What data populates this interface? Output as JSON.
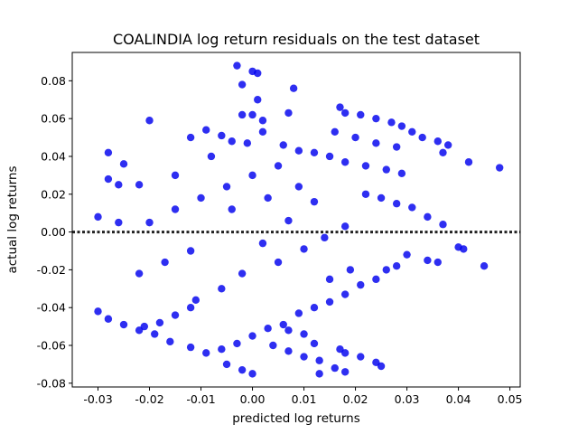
{
  "chart_data": {
    "type": "scatter",
    "title": "COALINDIA log return residuals on the test dataset",
    "xlabel": "predicted log returns",
    "ylabel": "actual log returns",
    "xlim": [
      -0.035,
      0.052
    ],
    "ylim": [
      -0.082,
      0.095
    ],
    "xticks": [
      "-0.03",
      "-0.02",
      "-0.01",
      "0.00",
      "0.01",
      "0.02",
      "0.03",
      "0.04",
      "0.05"
    ],
    "yticks": [
      "-0.08",
      "-0.06",
      "-0.04",
      "-0.02",
      "0.00",
      "0.02",
      "0.04",
      "0.06",
      "0.08"
    ],
    "grid": false,
    "reference_line": {
      "y": 0.0,
      "style": "dotted",
      "color": "#222222"
    },
    "marker_color": "#0000ee",
    "series": [
      {
        "values": [
          [
            -0.003,
            0.088
          ],
          [
            0.0,
            0.085
          ],
          [
            0.001,
            0.084
          ],
          [
            0.008,
            0.076
          ],
          [
            -0.002,
            0.078
          ],
          [
            0.001,
            0.07
          ],
          [
            -0.002,
            0.062
          ],
          [
            0.0,
            0.062
          ],
          [
            0.007,
            0.063
          ],
          [
            0.002,
            0.059
          ],
          [
            -0.02,
            0.059
          ],
          [
            0.017,
            0.066
          ],
          [
            0.018,
            0.063
          ],
          [
            0.021,
            0.062
          ],
          [
            0.024,
            0.06
          ],
          [
            0.027,
            0.058
          ],
          [
            0.029,
            0.056
          ],
          [
            0.031,
            0.053
          ],
          [
            0.033,
            0.05
          ],
          [
            0.036,
            0.048
          ],
          [
            0.038,
            0.046
          ],
          [
            0.037,
            0.042
          ],
          [
            0.042,
            0.037
          ],
          [
            0.048,
            0.034
          ],
          [
            0.02,
            0.05
          ],
          [
            0.024,
            0.047
          ],
          [
            0.028,
            0.045
          ],
          [
            0.016,
            0.053
          ],
          [
            -0.028,
            0.042
          ],
          [
            -0.025,
            0.036
          ],
          [
            -0.028,
            0.028
          ],
          [
            -0.026,
            0.025
          ],
          [
            -0.03,
            0.008
          ],
          [
            -0.026,
            0.005
          ],
          [
            -0.012,
            0.05
          ],
          [
            -0.009,
            0.054
          ],
          [
            -0.006,
            0.051
          ],
          [
            -0.004,
            0.048
          ],
          [
            -0.001,
            0.047
          ],
          [
            0.002,
            0.053
          ],
          [
            0.006,
            0.046
          ],
          [
            0.009,
            0.043
          ],
          [
            0.012,
            0.042
          ],
          [
            0.015,
            0.04
          ],
          [
            0.018,
            0.037
          ],
          [
            0.022,
            0.035
          ],
          [
            0.026,
            0.033
          ],
          [
            0.029,
            0.031
          ],
          [
            0.022,
            0.02
          ],
          [
            0.025,
            0.018
          ],
          [
            0.028,
            0.015
          ],
          [
            0.031,
            0.013
          ],
          [
            0.034,
            0.008
          ],
          [
            0.037,
            0.004
          ],
          [
            0.04,
            -0.008
          ],
          [
            0.041,
            -0.009
          ],
          [
            0.045,
            -0.018
          ],
          [
            0.036,
            -0.016
          ],
          [
            0.034,
            -0.015
          ],
          [
            0.03,
            -0.012
          ],
          [
            0.028,
            -0.018
          ],
          [
            0.026,
            -0.02
          ],
          [
            0.024,
            -0.025
          ],
          [
            0.021,
            -0.028
          ],
          [
            0.018,
            -0.033
          ],
          [
            0.015,
            -0.037
          ],
          [
            0.012,
            -0.04
          ],
          [
            0.009,
            -0.043
          ],
          [
            0.006,
            -0.049
          ],
          [
            0.003,
            -0.051
          ],
          [
            0.0,
            -0.055
          ],
          [
            -0.003,
            -0.059
          ],
          [
            -0.006,
            -0.062
          ],
          [
            -0.009,
            -0.064
          ],
          [
            -0.012,
            -0.061
          ],
          [
            -0.016,
            -0.058
          ],
          [
            -0.019,
            -0.054
          ],
          [
            -0.022,
            -0.052
          ],
          [
            -0.025,
            -0.049
          ],
          [
            -0.028,
            -0.046
          ],
          [
            -0.03,
            -0.042
          ],
          [
            -0.021,
            -0.05
          ],
          [
            -0.018,
            -0.048
          ],
          [
            -0.015,
            -0.044
          ],
          [
            -0.012,
            -0.04
          ],
          [
            0.004,
            -0.06
          ],
          [
            0.007,
            -0.063
          ],
          [
            0.01,
            -0.066
          ],
          [
            0.013,
            -0.068
          ],
          [
            0.016,
            -0.072
          ],
          [
            0.018,
            -0.074
          ],
          [
            0.013,
            -0.075
          ],
          [
            0.0,
            -0.075
          ],
          [
            -0.002,
            -0.073
          ],
          [
            -0.005,
            -0.07
          ],
          [
            0.012,
            -0.059
          ],
          [
            0.018,
            -0.064
          ],
          [
            0.021,
            -0.066
          ],
          [
            0.024,
            -0.069
          ],
          [
            0.025,
            -0.071
          ],
          [
            0.007,
            -0.052
          ],
          [
            0.01,
            -0.054
          ],
          [
            0.017,
            -0.062
          ],
          [
            0.005,
            -0.016
          ],
          [
            0.01,
            -0.009
          ],
          [
            0.014,
            -0.003
          ],
          [
            0.018,
            0.003
          ],
          [
            -0.005,
            0.024
          ],
          [
            -0.01,
            0.018
          ],
          [
            -0.015,
            0.012
          ],
          [
            -0.02,
            0.005
          ],
          [
            0.002,
            -0.006
          ],
          [
            -0.004,
            0.012
          ],
          [
            0.007,
            0.006
          ],
          [
            0.012,
            0.016
          ],
          [
            -0.012,
            -0.01
          ],
          [
            -0.017,
            -0.016
          ],
          [
            -0.022,
            -0.022
          ],
          [
            0.0,
            0.03
          ],
          [
            0.005,
            0.035
          ],
          [
            -0.008,
            0.04
          ],
          [
            -0.015,
            0.03
          ],
          [
            -0.022,
            0.025
          ],
          [
            0.015,
            -0.025
          ],
          [
            0.019,
            -0.02
          ],
          [
            -0.006,
            -0.03
          ],
          [
            -0.011,
            -0.036
          ],
          [
            -0.002,
            -0.022
          ],
          [
            0.003,
            0.018
          ],
          [
            0.009,
            0.024
          ]
        ]
      }
    ]
  }
}
